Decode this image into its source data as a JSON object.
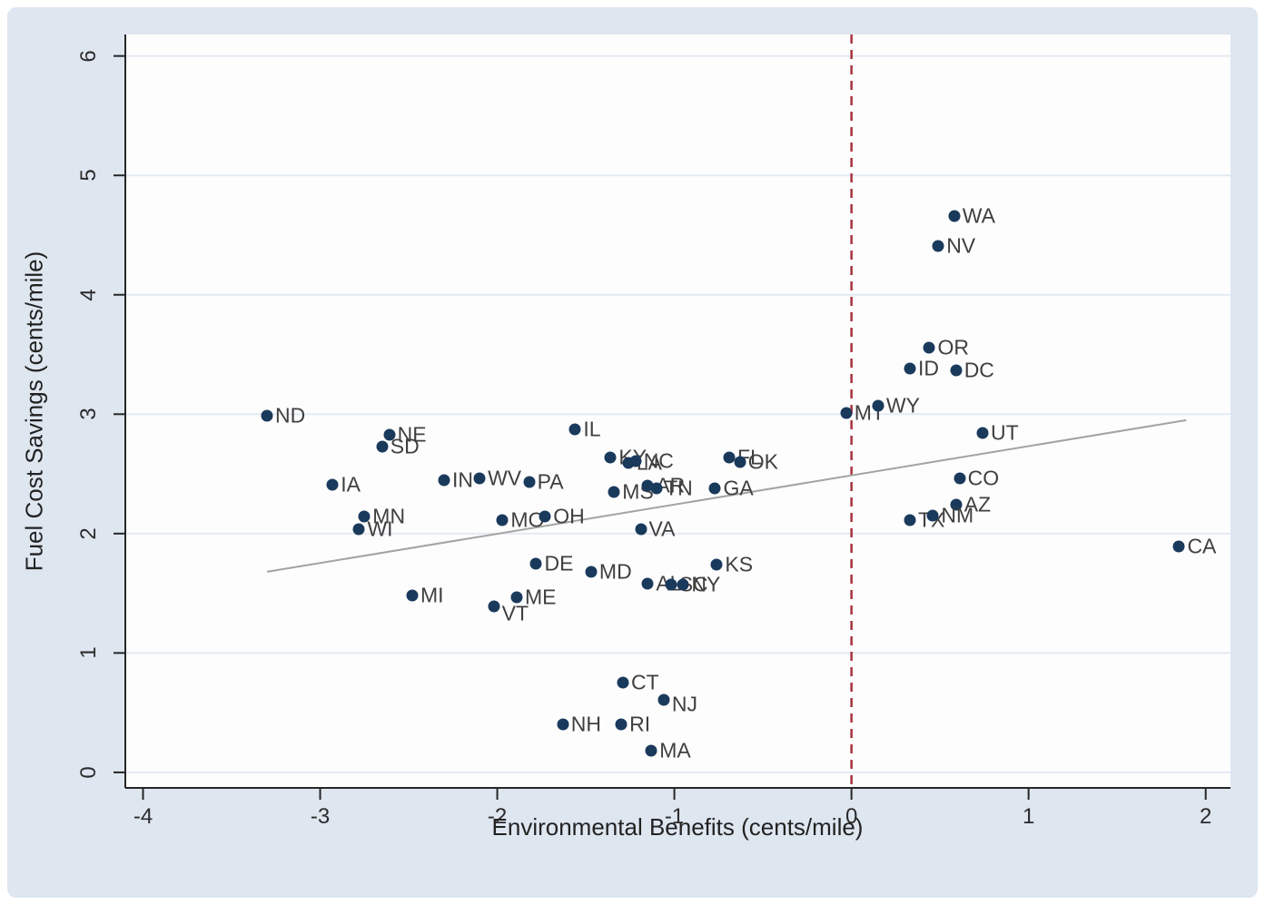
{
  "figure": {
    "background_color": "#dee6f0",
    "plot_background_color": "#fdfdfe"
  },
  "chart_data": {
    "type": "scatter",
    "title": "",
    "xlabel": "Environmental Benefits (cents/mile)",
    "ylabel": "Fuel Cost Savings (cents/mile)",
    "xlim": [
      -4.1,
      2.14
    ],
    "ylim": [
      -0.13,
      6.18
    ],
    "x_ticks": [
      -4,
      -3,
      -2,
      -1,
      0,
      1,
      2
    ],
    "y_ticks": [
      0,
      1,
      2,
      3,
      4,
      5,
      6
    ],
    "grid": "horizontal",
    "legend": "none",
    "colors": {
      "marker": "#1a3a5c",
      "point_label": "#3f3f3f",
      "grid": "#e4eaf2",
      "axis": "#262626",
      "tick_label": "#2b2b2b"
    },
    "vline": {
      "x": 0,
      "color": "#a8323e",
      "style": "dashed"
    },
    "trendline": {
      "color": "#a3a3a3",
      "points": [
        {
          "x": -3.3,
          "y": 1.68
        },
        {
          "x": 1.89,
          "y": 2.95
        }
      ]
    },
    "points": [
      {
        "label": "ND",
        "x": -3.3,
        "y": 2.99
      },
      {
        "label": "NE",
        "x": -2.61,
        "y": 2.83
      },
      {
        "label": "SD",
        "x": -2.65,
        "y": 2.73
      },
      {
        "label": "IA",
        "x": -2.93,
        "y": 2.41
      },
      {
        "label": "MN",
        "x": -2.75,
        "y": 2.14
      },
      {
        "label": "WI",
        "x": -2.78,
        "y": 2.04
      },
      {
        "label": "MI",
        "x": -2.48,
        "y": 1.48
      },
      {
        "label": "IN",
        "x": -2.3,
        "y": 2.45
      },
      {
        "label": "WV",
        "x": -2.1,
        "y": 2.46
      },
      {
        "label": "PA",
        "x": -1.82,
        "y": 2.43
      },
      {
        "label": "MO",
        "x": -1.97,
        "y": 2.11
      },
      {
        "label": "OH",
        "x": -1.73,
        "y": 2.14
      },
      {
        "label": "VT",
        "x": -2.02,
        "y": 1.39,
        "dy": 8
      },
      {
        "label": "ME",
        "x": -1.89,
        "y": 1.47
      },
      {
        "label": "DE",
        "x": -1.78,
        "y": 1.75
      },
      {
        "label": "MD",
        "x": -1.47,
        "y": 1.68
      },
      {
        "label": "IL",
        "x": -1.56,
        "y": 2.87
      },
      {
        "label": "KY",
        "x": -1.36,
        "y": 2.64
      },
      {
        "label": "LA",
        "x": -1.26,
        "y": 2.59
      },
      {
        "label": "NC",
        "x": -1.22,
        "y": 2.61
      },
      {
        "label": "FL",
        "x": -0.69,
        "y": 2.64
      },
      {
        "label": "OK",
        "x": -0.63,
        "y": 2.6
      },
      {
        "label": "MS",
        "x": -1.34,
        "y": 2.35
      },
      {
        "label": "AR",
        "x": -1.15,
        "y": 2.4
      },
      {
        "label": "TN",
        "x": -1.1,
        "y": 2.38
      },
      {
        "label": "GA",
        "x": -0.77,
        "y": 2.38
      },
      {
        "label": "VA",
        "x": -1.19,
        "y": 2.04
      },
      {
        "label": "KS",
        "x": -0.76,
        "y": 1.74
      },
      {
        "label": "AL",
        "x": -1.15,
        "y": 1.58
      },
      {
        "label": "SC",
        "x": -1.02,
        "y": 1.57
      },
      {
        "label": "NY",
        "x": -0.95,
        "y": 1.57
      },
      {
        "label": "CT",
        "x": -1.29,
        "y": 0.75
      },
      {
        "label": "NJ",
        "x": -1.06,
        "y": 0.61,
        "dy": 5
      },
      {
        "label": "NH",
        "x": -1.63,
        "y": 0.4
      },
      {
        "label": "RI",
        "x": -1.3,
        "y": 0.4
      },
      {
        "label": "MA",
        "x": -1.13,
        "y": 0.18
      },
      {
        "label": "MT",
        "x": -0.03,
        "y": 3.01
      },
      {
        "label": "WY",
        "x": 0.15,
        "y": 3.07
      },
      {
        "label": "ID",
        "x": 0.33,
        "y": 3.38
      },
      {
        "label": "OR",
        "x": 0.44,
        "y": 3.56
      },
      {
        "label": "DC",
        "x": 0.59,
        "y": 3.37
      },
      {
        "label": "WA",
        "x": 0.58,
        "y": 4.66
      },
      {
        "label": "NV",
        "x": 0.49,
        "y": 4.41
      },
      {
        "label": "UT",
        "x": 0.74,
        "y": 2.84
      },
      {
        "label": "CO",
        "x": 0.61,
        "y": 2.46
      },
      {
        "label": "AZ",
        "x": 0.59,
        "y": 2.24
      },
      {
        "label": "TX",
        "x": 0.33,
        "y": 2.11
      },
      {
        "label": "NM",
        "x": 0.46,
        "y": 2.15
      },
      {
        "label": "CA",
        "x": 1.85,
        "y": 1.89
      }
    ]
  }
}
